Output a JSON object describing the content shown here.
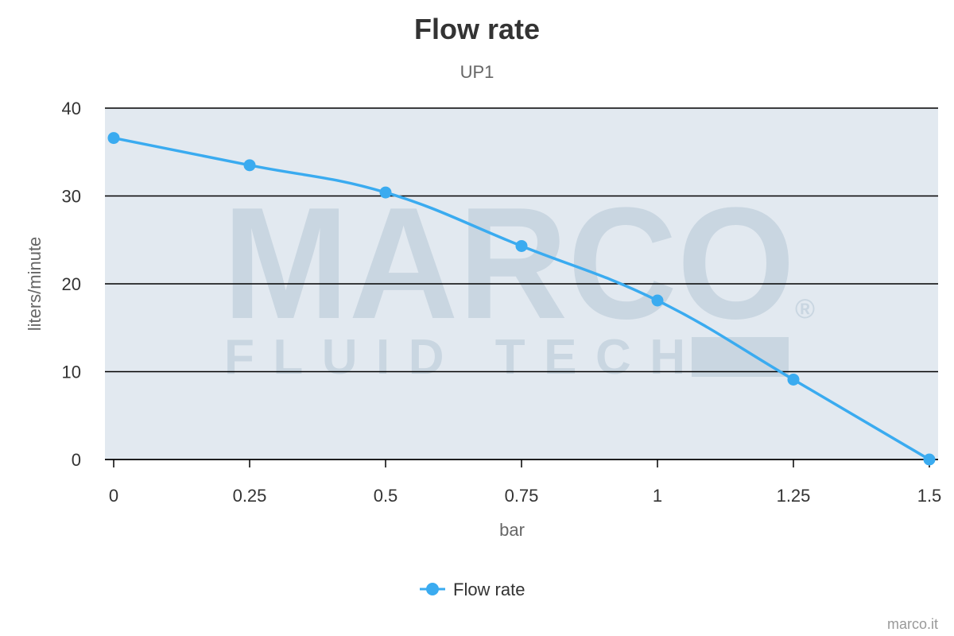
{
  "chart_data": {
    "type": "line",
    "title": "Flow rate",
    "subtitle": "UP1",
    "xlabel": "bar",
    "ylabel": "liters/minute",
    "x": [
      0,
      0.25,
      0.5,
      0.75,
      1,
      1.25,
      1.5
    ],
    "x_tick_labels": [
      "0",
      "0.25",
      "0.5",
      "0.75",
      "1",
      "1.25",
      "1.5"
    ],
    "y_ticks": [
      0,
      10,
      20,
      30,
      40
    ],
    "xlim": [
      0,
      1.5
    ],
    "ylim": [
      0,
      40
    ],
    "grid": true,
    "legend_position": "bottom-center",
    "series": [
      {
        "name": "Flow rate",
        "color": "#3aabf0",
        "values": [
          36.6,
          33.5,
          30.4,
          24.3,
          18.1,
          9.1,
          0
        ]
      }
    ],
    "plot_background": "#e2e9f0"
  },
  "watermark": {
    "line1": "MARCO",
    "line2": "FLUID TECH",
    "mark": "®"
  },
  "credit": "marco.it"
}
